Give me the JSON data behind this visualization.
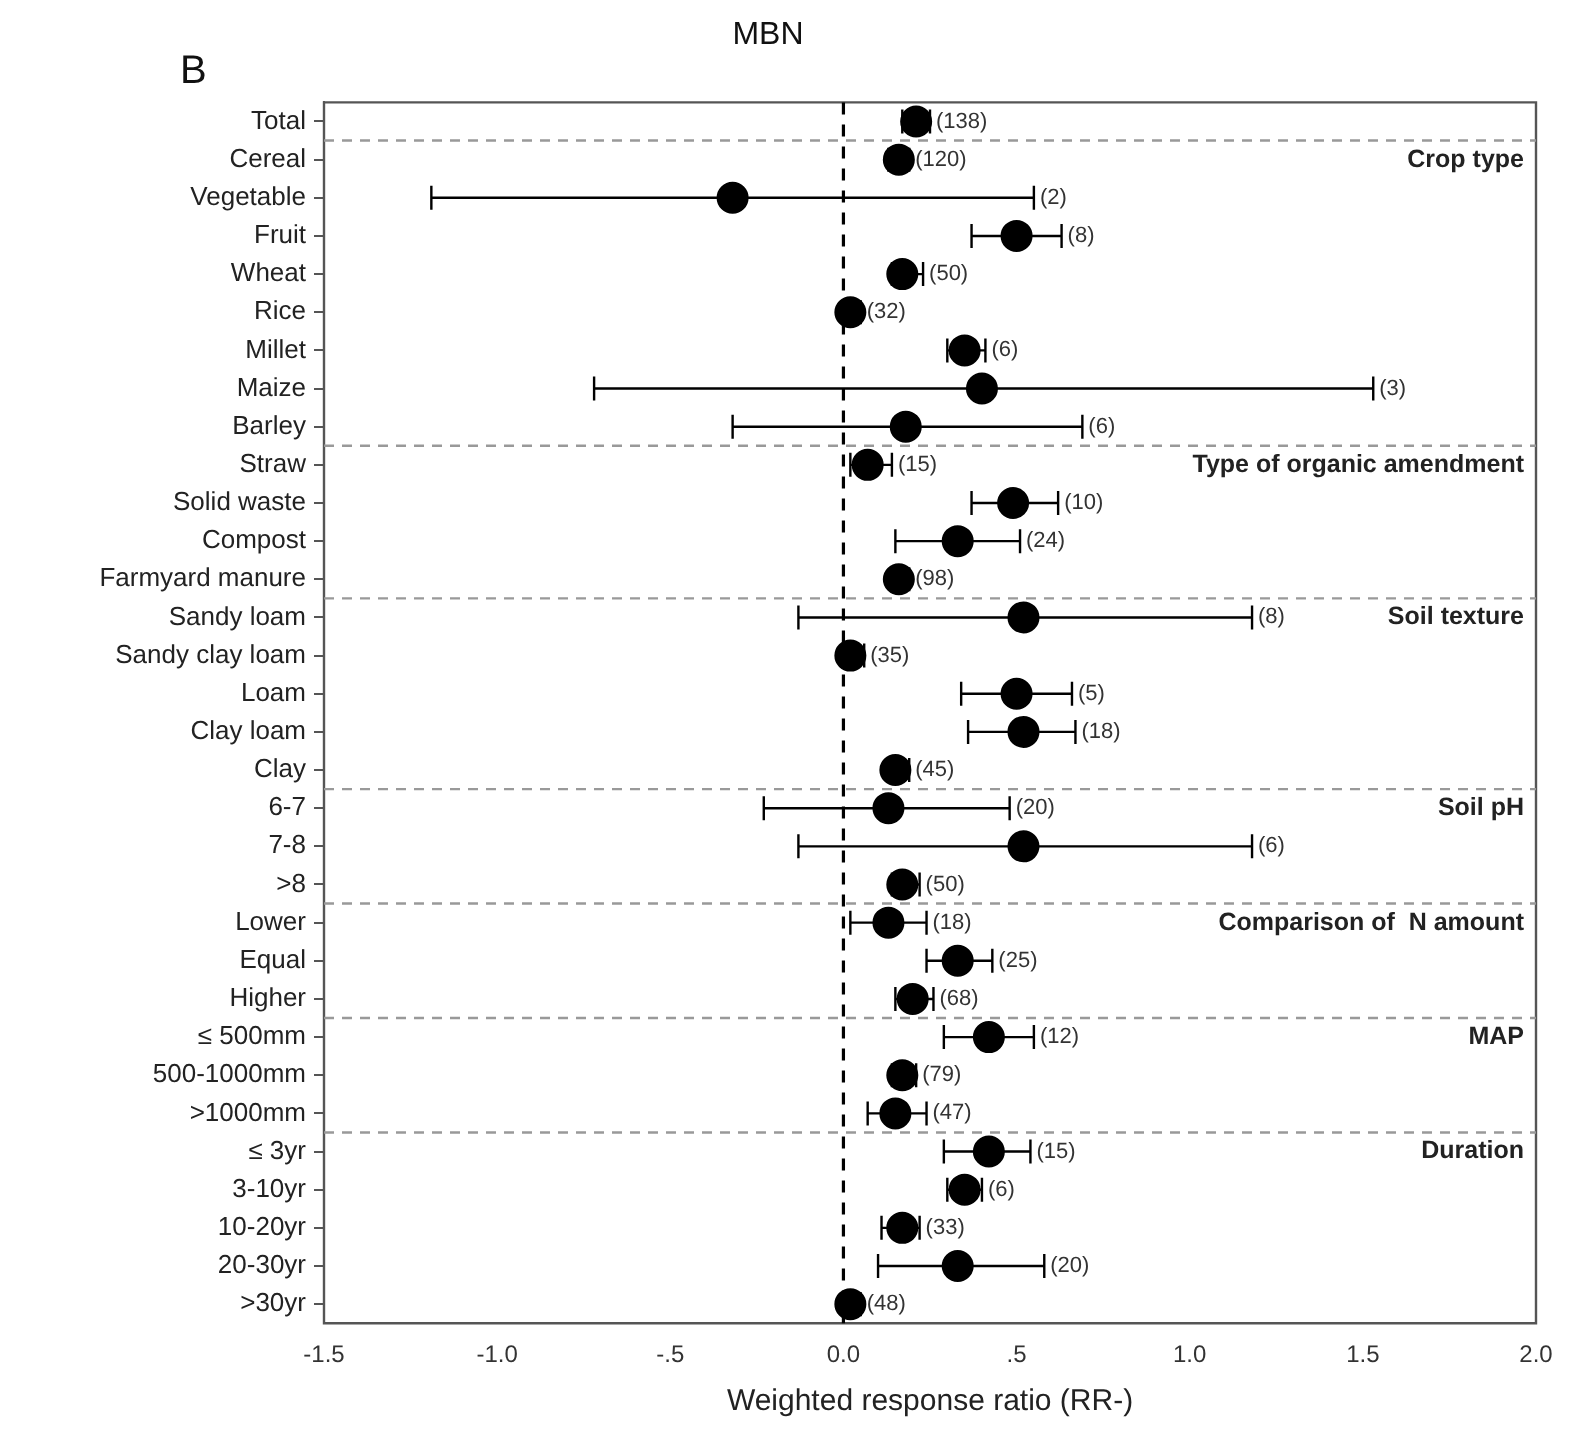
{
  "chart_data": {
    "type": "scatter",
    "orientation": "horizontal",
    "title": "MBN",
    "xlabel": "Weighted response ratio (RR-)",
    "categories": [
      "Total",
      "Cereal",
      "Vegetable",
      "Fruit",
      "Wheat",
      "Rice",
      "Millet",
      "Maize",
      "Barley",
      "Straw",
      "Solid waste",
      "Compost",
      "Farmyard manure",
      "Sandy loam",
      "Sandy clay loam",
      "Loam",
      "Clay loam",
      "Clay",
      "6-7",
      "7-8",
      ">8",
      "Lower",
      "Equal",
      "Higher",
      "≤ 500mm",
      "500-1000mm",
      ">1000mm",
      "≤ 3yr",
      "3-10yr",
      "10-20yr",
      "20-30yr",
      ">30yr"
    ],
    "series": [
      {
        "color": "#000000",
        "values": [
          0.21,
          0.16,
          -0.32,
          0.5,
          0.17,
          0.02,
          0.35,
          0.4,
          0.18,
          0.07,
          0.49,
          0.33,
          0.16,
          0.52,
          0.02,
          0.5,
          0.52,
          0.15,
          0.13,
          0.52,
          0.17,
          0.13,
          0.33,
          0.2,
          0.42,
          0.17,
          0.15,
          0.42,
          0.35,
          0.17,
          0.33,
          0.02
        ],
        "errors": [
          [
            0.17,
            0.25
          ],
          [
            0.13,
            0.19
          ],
          [
            -1.19,
            0.55
          ],
          [
            0.37,
            0.63
          ],
          [
            0.14,
            0.23
          ],
          [
            0.02,
            0.05
          ],
          [
            0.3,
            0.41
          ],
          [
            -0.72,
            1.53
          ],
          [
            -0.32,
            0.69
          ],
          [
            0.02,
            0.14
          ],
          [
            0.37,
            0.62
          ],
          [
            0.15,
            0.51
          ],
          [
            0.16,
            0.19
          ],
          [
            -0.13,
            1.18
          ],
          [
            0.02,
            0.06
          ],
          [
            0.34,
            0.66
          ],
          [
            0.36,
            0.67
          ],
          [
            0.15,
            0.19
          ],
          [
            -0.23,
            0.48
          ],
          [
            -0.13,
            1.18
          ],
          [
            0.14,
            0.22
          ],
          [
            0.02,
            0.24
          ],
          [
            0.24,
            0.43
          ],
          [
            0.15,
            0.26
          ],
          [
            0.29,
            0.55
          ],
          [
            0.14,
            0.21
          ],
          [
            0.07,
            0.24
          ],
          [
            0.29,
            0.54
          ],
          [
            0.3,
            0.4
          ],
          [
            0.11,
            0.22
          ],
          [
            0.1,
            0.58
          ],
          [
            0.02,
            0.05
          ]
        ]
      }
    ],
    "xlim": [
      -1.5,
      2.0
    ],
    "xticks": [
      {
        "value": -1.5,
        "label": "-1.5"
      },
      {
        "value": -1.0,
        "label": "-1.0"
      },
      {
        "value": -0.5,
        "label": "-.5"
      },
      {
        "value": 0,
        "label": "0.0"
      },
      {
        "value": 0.5,
        "label": ".5"
      },
      {
        "value": 1.0,
        "label": "1.0"
      },
      {
        "value": 1.5,
        "label": "1.5"
      },
      {
        "value": 2.0,
        "label": "2.0"
      }
    ],
    "ref_lines": [
      {
        "axis": "x",
        "value": 0,
        "line_style": "dashed",
        "color": "#000000"
      }
    ],
    "annotations": [
      "B",
      "Crop type",
      "Type of organic amendment",
      "Soil texture",
      "Soil pH",
      "Comparison of  N amount",
      "MAP",
      "Duration",
      {
        "text": "(138)",
        "x": 0.25,
        "y": "Total"
      },
      {
        "text": "(120)",
        "x": 0.19,
        "y": "Cereal"
      },
      {
        "text": "(2)",
        "x": 0.55,
        "y": "Vegetable"
      },
      {
        "text": "(8)",
        "x": 0.63,
        "y": "Fruit"
      },
      {
        "text": "(50)",
        "x": 0.23,
        "y": "Wheat"
      },
      {
        "text": "(32)",
        "x": 0.05,
        "y": "Rice"
      },
      {
        "text": "(6)",
        "x": 0.41,
        "y": "Millet"
      },
      {
        "text": "(3)",
        "x": 1.53,
        "y": "Maize"
      },
      {
        "text": "(6)",
        "x": 0.69,
        "y": "Barley"
      },
      {
        "text": "(15)",
        "x": 0.14,
        "y": "Straw"
      },
      {
        "text": "(10)",
        "x": 0.62,
        "y": "Solid waste"
      },
      {
        "text": "(24)",
        "x": 0.51,
        "y": "Compost"
      },
      {
        "text": "(98)",
        "x": 0.19,
        "y": "Farmyard manure"
      },
      {
        "text": "(8)",
        "x": 1.18,
        "y": "Sandy loam"
      },
      {
        "text": "(35)",
        "x": 0.06,
        "y": "Sandy clay loam"
      },
      {
        "text": "(5)",
        "x": 0.66,
        "y": "Loam"
      },
      {
        "text": "(18)",
        "x": 0.67,
        "y": "Clay loam"
      },
      {
        "text": "(45)",
        "x": 0.19,
        "y": "Clay"
      },
      {
        "text": "(20)",
        "x": 0.48,
        "y": "6-7"
      },
      {
        "text": "(6)",
        "x": 1.18,
        "y": "7-8"
      },
      {
        "text": "(50)",
        "x": 0.22,
        "y": ">8"
      },
      {
        "text": "(18)",
        "x": 0.24,
        "y": "Lower"
      },
      {
        "text": "(25)",
        "x": 0.43,
        "y": "Equal"
      },
      {
        "text": "(68)",
        "x": 0.26,
        "y": "Higher"
      },
      {
        "text": "(12)",
        "x": 0.55,
        "y": "≤ 500mm"
      },
      {
        "text": "(79)",
        "x": 0.21,
        "y": "500-1000mm"
      },
      {
        "text": "(47)",
        "x": 0.24,
        "y": ">1000mm"
      },
      {
        "text": "(15)",
        "x": 0.54,
        "y": "≤ 3yr"
      },
      {
        "text": "(6)",
        "x": 0.4,
        "y": "3-10yr"
      },
      {
        "text": "(33)",
        "x": 0.22,
        "y": "10-20yr"
      },
      {
        "text": "(20)",
        "x": 0.58,
        "y": "20-30yr"
      },
      {
        "text": "(48)",
        "x": 0.05,
        "y": ">30yr"
      }
    ],
    "marker": "circle",
    "grid": false,
    "legend": false
  }
}
